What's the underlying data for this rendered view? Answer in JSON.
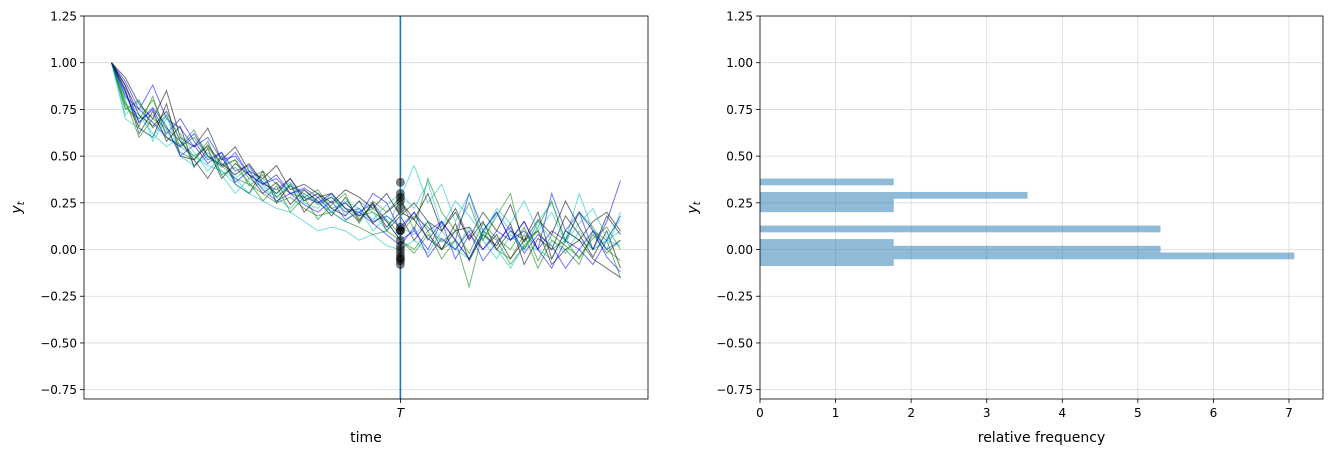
{
  "chart_data": [
    {
      "type": "line",
      "xlabel": "time",
      "ylabel": "y_t",
      "ylim": [
        -0.8,
        1.25
      ],
      "yticks": [
        -0.75,
        -0.5,
        -0.25,
        0.0,
        0.25,
        0.5,
        0.75,
        1.0,
        1.25
      ],
      "ytick_labels": [
        "−0.75",
        "−0.50",
        "−0.25",
        "0.00",
        "0.25",
        "0.50",
        "0.75",
        "1.00",
        "1.25"
      ],
      "xlim": [
        -2,
        39
      ],
      "xticks": [
        21
      ],
      "xtick_labels": [
        "T"
      ],
      "vline_x": 21,
      "vline_color": "#1f77b4",
      "grid": true,
      "series_colors": [
        "#00bfbf",
        "#0000ff",
        "#008000",
        "#000000"
      ],
      "series": [
        {
          "values": [
            1.0,
            0.82,
            0.7,
            0.72,
            0.6,
            0.55,
            0.5,
            0.45,
            0.42,
            0.38,
            0.3,
            0.26,
            0.22,
            0.2,
            0.15,
            0.1,
            0.12,
            0.1,
            0.05,
            0.08,
            0.02,
            0.0,
            0.05,
            -0.02,
            0.1,
            0.0,
            -0.05,
            0.08,
            0.0,
            -0.1,
            0.02,
            0.0,
            -0.05,
            0.1,
            0.05,
            0.0,
            0.05,
            0.1
          ]
        },
        {
          "values": [
            1.0,
            0.9,
            0.75,
            0.88,
            0.7,
            0.65,
            0.55,
            0.6,
            0.48,
            0.5,
            0.4,
            0.35,
            0.38,
            0.3,
            0.32,
            0.25,
            0.28,
            0.2,
            0.22,
            0.15,
            0.18,
            0.12,
            0.2,
            0.1,
            0.15,
            0.05,
            0.3,
            0.1,
            0.2,
            0.05,
            0.15,
            0.0,
            0.3,
            0.1,
            0.2,
            0.0,
            0.15,
            0.37
          ]
        },
        {
          "values": [
            1.0,
            0.75,
            0.8,
            0.65,
            0.72,
            0.55,
            0.6,
            0.5,
            0.45,
            0.48,
            0.38,
            0.42,
            0.35,
            0.3,
            0.28,
            0.32,
            0.22,
            0.25,
            0.18,
            0.2,
            0.15,
            0.05,
            0.0,
            0.1,
            -0.05,
            0.05,
            -0.2,
            0.1,
            0.0,
            -0.05,
            0.08,
            -0.1,
            0.05,
            0.0,
            -0.08,
            0.1,
            0.05,
            -0.15
          ]
        },
        {
          "values": [
            1.0,
            0.85,
            0.65,
            0.6,
            0.78,
            0.5,
            0.48,
            0.38,
            0.5,
            0.35,
            0.3,
            0.42,
            0.25,
            0.35,
            0.2,
            0.28,
            0.3,
            0.22,
            0.15,
            0.25,
            0.1,
            0.18,
            0.05,
            0.15,
            0.0,
            0.1,
            0.12,
            0.0,
            0.08,
            -0.05,
            0.05,
            0.1,
            -0.08,
            0.0,
            0.05,
            -0.05,
            -0.1,
            -0.15
          ]
        },
        {
          "values": [
            1.0,
            0.78,
            0.72,
            0.62,
            0.55,
            0.6,
            0.45,
            0.52,
            0.4,
            0.3,
            0.38,
            0.33,
            0.28,
            0.35,
            0.25,
            0.22,
            0.3,
            0.18,
            0.26,
            0.2,
            0.1,
            0.28,
            0.45,
            0.25,
            0.35,
            0.15,
            0.3,
            0.05,
            0.2,
            0.1,
            0.0,
            0.15,
            0.25,
            0.05,
            0.3,
            0.1,
            0.0,
            0.2
          ]
        },
        {
          "values": [
            1.0,
            0.88,
            0.68,
            0.75,
            0.62,
            0.7,
            0.58,
            0.48,
            0.52,
            0.42,
            0.45,
            0.35,
            0.4,
            0.3,
            0.33,
            0.28,
            0.2,
            0.25,
            0.18,
            0.3,
            0.25,
            0.1,
            0.2,
            0.05,
            0.15,
            -0.05,
            0.08,
            0.0,
            0.1,
            0.05,
            0.15,
            0.0,
            0.1,
            0.05,
            0.2,
            0.1,
            0.0,
            0.05
          ]
        },
        {
          "values": [
            1.0,
            0.8,
            0.6,
            0.7,
            0.65,
            0.58,
            0.5,
            0.55,
            0.45,
            0.38,
            0.35,
            0.3,
            0.25,
            0.28,
            0.22,
            0.18,
            0.2,
            0.15,
            0.12,
            0.08,
            0.1,
            0.05,
            -0.02,
            0.08,
            0.0,
            0.05,
            -0.05,
            0.1,
            0.05,
            -0.08,
            0.02,
            0.1,
            0.0,
            0.05,
            -0.05,
            0.08,
            -0.02,
            0.05
          ]
        },
        {
          "values": [
            1.0,
            0.92,
            0.78,
            0.7,
            0.85,
            0.6,
            0.55,
            0.65,
            0.48,
            0.55,
            0.42,
            0.38,
            0.45,
            0.32,
            0.35,
            0.3,
            0.25,
            0.32,
            0.28,
            0.22,
            0.3,
            0.18,
            0.25,
            0.15,
            0.1,
            0.2,
            0.05,
            0.15,
            0.0,
            0.1,
            0.05,
            0.2,
            -0.05,
            0.1,
            0.05,
            0.15,
            0.2,
            0.1
          ]
        },
        {
          "values": [
            1.0,
            0.7,
            0.65,
            0.6,
            0.72,
            0.5,
            0.45,
            0.5,
            0.42,
            0.35,
            0.3,
            0.38,
            0.28,
            0.22,
            0.3,
            0.25,
            0.2,
            0.15,
            0.22,
            0.1,
            0.18,
            0.12,
            0.08,
            0.15,
            0.05,
            0.0,
            0.12,
            0.05,
            -0.05,
            0.08,
            0.0,
            0.15,
            0.05,
            -0.02,
            0.1,
            0.0,
            0.05,
            0.02
          ]
        },
        {
          "values": [
            1.0,
            0.82,
            0.75,
            0.68,
            0.6,
            0.55,
            0.62,
            0.5,
            0.45,
            0.52,
            0.4,
            0.35,
            0.32,
            0.38,
            0.28,
            0.25,
            0.3,
            0.22,
            0.2,
            0.25,
            0.15,
            0.05,
            0.1,
            0.0,
            0.15,
            0.05,
            -0.05,
            0.1,
            0.2,
            0.05,
            0.1,
            0.0,
            -0.1,
            0.05,
            0.0,
            -0.08,
            0.05,
            0.18
          ]
        },
        {
          "values": [
            1.0,
            0.76,
            0.7,
            0.8,
            0.64,
            0.52,
            0.48,
            0.58,
            0.4,
            0.44,
            0.36,
            0.26,
            0.34,
            0.2,
            0.28,
            0.16,
            0.24,
            0.3,
            0.14,
            0.26,
            0.2,
            0.28,
            0.1,
            0.38,
            0.2,
            0.1,
            0.25,
            0.05,
            0.18,
            0.3,
            0.0,
            0.12,
            0.26,
            0.04,
            0.2,
            0.12,
            0.0,
            -0.06
          ]
        },
        {
          "values": [
            1.0,
            0.86,
            0.62,
            0.74,
            0.58,
            0.66,
            0.44,
            0.54,
            0.38,
            0.46,
            0.4,
            0.3,
            0.36,
            0.24,
            0.32,
            0.26,
            0.18,
            0.28,
            0.16,
            0.24,
            0.12,
            0.2,
            0.16,
            0.06,
            0.0,
            0.14,
            -0.06,
            0.08,
            0.02,
            0.14,
            -0.08,
            0.06,
            0.0,
            0.18,
            0.08,
            -0.04,
            0.1,
            -0.1
          ]
        },
        {
          "values": [
            1.0,
            0.72,
            0.8,
            0.58,
            0.7,
            0.62,
            0.52,
            0.42,
            0.5,
            0.38,
            0.44,
            0.34,
            0.3,
            0.36,
            0.26,
            0.3,
            0.2,
            0.26,
            0.22,
            0.16,
            0.24,
            0.3,
            0.22,
            0.36,
            0.12,
            0.26,
            0.18,
            0.08,
            0.22,
            0.14,
            0.26,
            0.1,
            0.2,
            0.04,
            0.14,
            0.22,
            0.06,
            0.16
          ]
        },
        {
          "values": [
            1.0,
            0.84,
            0.68,
            0.76,
            0.66,
            0.5,
            0.56,
            0.46,
            0.52,
            0.36,
            0.42,
            0.32,
            0.26,
            0.3,
            0.24,
            0.2,
            0.26,
            0.16,
            0.2,
            0.14,
            0.08,
            0.02,
            0.12,
            -0.04,
            0.06,
            0.0,
            0.1,
            -0.06,
            0.04,
            0.12,
            -0.02,
            0.08,
            0.02,
            -0.1,
            0.0,
            0.1,
            -0.04,
            -0.12
          ]
        },
        {
          "values": [
            1.0,
            0.78,
            0.66,
            0.82,
            0.6,
            0.56,
            0.64,
            0.5,
            0.44,
            0.48,
            0.34,
            0.4,
            0.28,
            0.34,
            0.3,
            0.24,
            0.28,
            0.22,
            0.18,
            0.22,
            0.16,
            0.08,
            0.18,
            0.12,
            0.04,
            0.1,
            -0.02,
            0.14,
            0.06,
            0.0,
            0.12,
            -0.06,
            0.08,
            0.02,
            -0.04,
            0.06,
            0.12,
            0.0
          ]
        },
        {
          "values": [
            1.0,
            0.88,
            0.72,
            0.66,
            0.74,
            0.58,
            0.48,
            0.56,
            0.46,
            0.4,
            0.46,
            0.36,
            0.3,
            0.38,
            0.26,
            0.3,
            0.22,
            0.18,
            0.26,
            0.14,
            0.2,
            0.26,
            0.16,
            0.3,
            0.1,
            0.22,
            0.06,
            0.2,
            0.1,
            0.24,
            0.04,
            0.16,
            0.08,
            0.26,
            0.12,
            0.0,
            0.18,
            0.08
          ]
        }
      ],
      "endpoints_at_T": [
        0.36,
        0.3,
        0.28,
        0.26,
        0.22,
        0.12,
        0.1,
        0.1,
        0.05,
        0.02,
        0.0,
        -0.02,
        -0.04,
        -0.05,
        -0.06,
        -0.08
      ],
      "endpoint_color": "#000000"
    },
    {
      "type": "bar",
      "orientation": "horizontal",
      "xlabel": "relative frequency",
      "ylabel": "y_t",
      "ylim": [
        -0.8,
        1.25
      ],
      "yticks": [
        -0.75,
        -0.5,
        -0.25,
        0.0,
        0.25,
        0.5,
        0.75,
        1.0,
        1.25
      ],
      "ytick_labels": [
        "−0.75",
        "−0.50",
        "−0.25",
        "0.00",
        "0.25",
        "0.50",
        "0.75",
        "1.00",
        "1.25"
      ],
      "xlim": [
        0,
        7.45
      ],
      "xticks": [
        0,
        1,
        2,
        3,
        4,
        5,
        6,
        7
      ],
      "xtick_labels": [
        "0",
        "1",
        "2",
        "3",
        "4",
        "5",
        "6",
        "7"
      ],
      "bar_color": "#1f77b4",
      "grid": true,
      "bins": [
        {
          "y0": -0.088,
          "y1": -0.052,
          "value": 1.77
        },
        {
          "y0": -0.052,
          "y1": -0.016,
          "value": 7.07
        },
        {
          "y0": -0.016,
          "y1": 0.02,
          "value": 5.3
        },
        {
          "y0": 0.02,
          "y1": 0.056,
          "value": 1.77
        },
        {
          "y0": 0.056,
          "y1": 0.092,
          "value": 0.0
        },
        {
          "y0": 0.092,
          "y1": 0.128,
          "value": 5.3
        },
        {
          "y0": 0.128,
          "y1": 0.164,
          "value": 0.0
        },
        {
          "y0": 0.164,
          "y1": 0.2,
          "value": 0.0
        },
        {
          "y0": 0.2,
          "y1": 0.236,
          "value": 1.77
        },
        {
          "y0": 0.236,
          "y1": 0.272,
          "value": 1.77
        },
        {
          "y0": 0.272,
          "y1": 0.308,
          "value": 3.54
        },
        {
          "y0": 0.308,
          "y1": 0.344,
          "value": 0.0
        },
        {
          "y0": 0.344,
          "y1": 0.38,
          "value": 1.77
        }
      ]
    }
  ]
}
